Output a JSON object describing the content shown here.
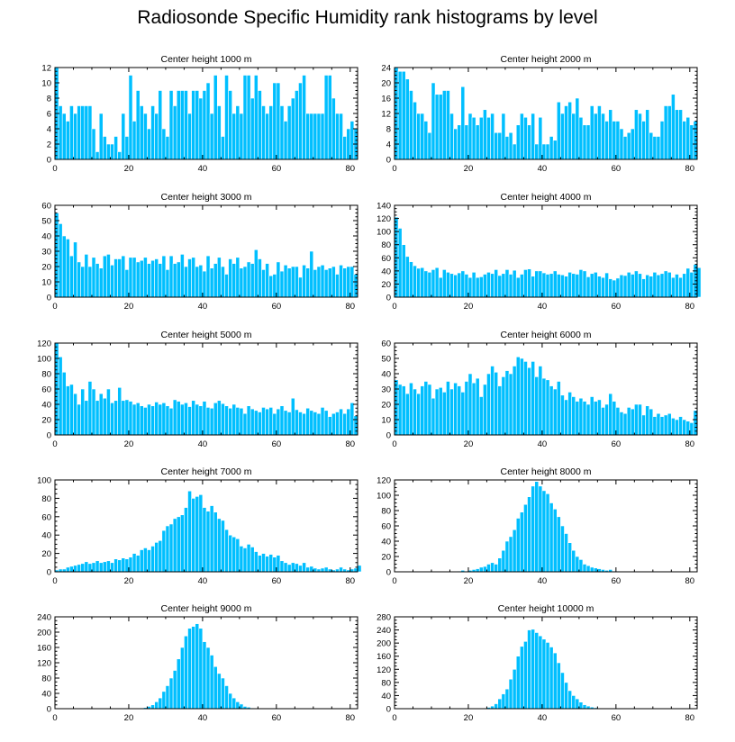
{
  "title": "Radiosonde Specific Humidity rank histograms by level",
  "colors": {
    "bar": "#00bfff",
    "bar_edge": "#ffffff",
    "axis": "#000000"
  },
  "chart_data": [
    {
      "type": "bar",
      "title": "Center height 1000 m",
      "xlim": [
        0,
        82
      ],
      "ylim": [
        0,
        12
      ],
      "xticks": [
        0,
        20,
        40,
        60,
        80
      ],
      "yticks": [
        0,
        2,
        4,
        6,
        8,
        10,
        12
      ],
      "values": [
        12,
        7,
        6,
        5,
        7,
        6,
        7,
        7,
        7,
        7,
        4,
        1,
        6,
        3,
        2,
        2,
        3,
        1,
        6,
        3,
        11,
        5,
        9,
        7,
        6,
        4,
        7,
        6,
        9,
        4,
        3,
        9,
        7,
        9,
        9,
        9,
        6,
        9,
        9,
        8,
        9,
        10,
        6,
        11,
        7,
        3,
        11,
        9,
        6,
        7,
        6,
        11,
        11,
        8,
        11,
        9,
        7,
        6,
        7,
        10,
        10,
        7,
        5,
        7,
        8,
        9,
        10,
        11,
        6,
        6,
        6,
        6,
        6,
        11,
        11,
        8,
        6,
        6,
        3,
        4,
        5,
        4
      ]
    },
    {
      "type": "bar",
      "title": "Center height 2000 m",
      "xlim": [
        0,
        82
      ],
      "ylim": [
        0,
        24
      ],
      "xticks": [
        0,
        20,
        40,
        60,
        80
      ],
      "yticks": [
        0,
        4,
        8,
        12,
        16,
        20,
        24
      ],
      "values": [
        24,
        23,
        23,
        21,
        18,
        15,
        12,
        12,
        10,
        7,
        20,
        17,
        17,
        18,
        18,
        12,
        8,
        9,
        19,
        9,
        12,
        11,
        9,
        11,
        13,
        11,
        12,
        7,
        7,
        12,
        6,
        7,
        4,
        9,
        12,
        11,
        9,
        12,
        4,
        11,
        4,
        4,
        6,
        5,
        15,
        12,
        14,
        15,
        12,
        16,
        11,
        9,
        9,
        14,
        12,
        14,
        12,
        10,
        13,
        10,
        10,
        8,
        6,
        7,
        8,
        13,
        12,
        10,
        13,
        7,
        6,
        6,
        10,
        14,
        14,
        17,
        13,
        13,
        10,
        11,
        9,
        10
      ]
    },
    {
      "type": "bar",
      "title": "Center height 3000 m",
      "xlim": [
        0,
        82
      ],
      "ylim": [
        0,
        60
      ],
      "xticks": [
        0,
        20,
        40,
        60,
        80
      ],
      "yticks": [
        0,
        10,
        20,
        30,
        40,
        50,
        60
      ],
      "values": [
        55,
        48,
        40,
        38,
        27,
        36,
        23,
        20,
        28,
        20,
        26,
        22,
        19,
        27,
        28,
        21,
        25,
        25,
        27,
        18,
        26,
        26,
        23,
        24,
        26,
        22,
        24,
        25,
        22,
        27,
        18,
        27,
        22,
        23,
        28,
        20,
        25,
        26,
        20,
        21,
        17,
        27,
        19,
        22,
        26,
        20,
        15,
        25,
        22,
        26,
        19,
        20,
        23,
        22,
        31,
        25,
        18,
        22,
        14,
        15,
        23,
        17,
        21,
        19,
        20,
        20,
        13,
        21,
        19,
        30,
        18,
        20,
        21,
        18,
        19,
        20,
        15,
        21,
        19,
        20,
        20,
        15
      ]
    },
    {
      "type": "bar",
      "title": "Center height 4000 m",
      "xlim": [
        0,
        82
      ],
      "ylim": [
        0,
        140
      ],
      "xticks": [
        0,
        20,
        40,
        60,
        80
      ],
      "yticks": [
        0,
        20,
        40,
        60,
        80,
        100,
        120,
        140
      ],
      "values": [
        122,
        105,
        80,
        62,
        54,
        48,
        44,
        45,
        40,
        38,
        42,
        45,
        30,
        42,
        38,
        36,
        34,
        37,
        40,
        35,
        30,
        38,
        30,
        31,
        35,
        38,
        36,
        42,
        33,
        36,
        42,
        35,
        41,
        30,
        35,
        42,
        43,
        32,
        40,
        40,
        37,
        35,
        36,
        40,
        35,
        34,
        32,
        38,
        36,
        35,
        42,
        40,
        31,
        36,
        38,
        32,
        30,
        37,
        28,
        26,
        29,
        34,
        33,
        38,
        35,
        40,
        36,
        28,
        34,
        32,
        38,
        34,
        36,
        40,
        38,
        30,
        35,
        30,
        36,
        44,
        38,
        50,
        45
      ]
    },
    {
      "type": "bar",
      "title": "Center height 5000 m",
      "xlim": [
        0,
        82
      ],
      "ylim": [
        0,
        120
      ],
      "xticks": [
        0,
        20,
        40,
        60,
        80
      ],
      "yticks": [
        0,
        20,
        40,
        60,
        80,
        100,
        120
      ],
      "values": [
        120,
        102,
        82,
        64,
        66,
        54,
        40,
        60,
        45,
        70,
        60,
        45,
        54,
        48,
        60,
        42,
        45,
        62,
        45,
        46,
        44,
        40,
        42,
        38,
        36,
        40,
        38,
        43,
        40,
        42,
        38,
        35,
        46,
        44,
        40,
        42,
        37,
        45,
        40,
        38,
        44,
        36,
        35,
        42,
        45,
        41,
        38,
        35,
        40,
        36,
        35,
        28,
        38,
        34,
        32,
        30,
        36,
        34,
        36,
        28,
        34,
        38,
        32,
        30,
        48,
        33,
        30,
        28,
        35,
        32,
        30,
        28,
        36,
        32,
        24,
        28,
        30,
        34,
        28,
        34,
        42,
        25
      ]
    },
    {
      "type": "bar",
      "title": "Center height 6000 m",
      "xlim": [
        0,
        82
      ],
      "ylim": [
        0,
        60
      ],
      "xticks": [
        0,
        20,
        40,
        60,
        80
      ],
      "yticks": [
        0,
        10,
        20,
        30,
        40,
        50,
        60
      ],
      "values": [
        36,
        33,
        32,
        27,
        34,
        30,
        27,
        32,
        35,
        33,
        24,
        30,
        31,
        28,
        35,
        30,
        34,
        32,
        28,
        35,
        40,
        34,
        37,
        25,
        33,
        40,
        45,
        41,
        32,
        38,
        42,
        40,
        45,
        51,
        50,
        48,
        44,
        48,
        38,
        45,
        37,
        36,
        32,
        30,
        35,
        26,
        23,
        28,
        25,
        22,
        24,
        22,
        20,
        25,
        22,
        23,
        18,
        20,
        27,
        22,
        18,
        15,
        14,
        18,
        17,
        20,
        20,
        13,
        19,
        17,
        12,
        14,
        12,
        13,
        14,
        11,
        10,
        12,
        10,
        9,
        8,
        16
      ]
    },
    {
      "type": "bar",
      "title": "Center height 7000 m",
      "xlim": [
        0,
        82
      ],
      "ylim": [
        0,
        100
      ],
      "xticks": [
        0,
        20,
        40,
        60,
        80
      ],
      "yticks": [
        0,
        20,
        40,
        60,
        80,
        100
      ],
      "values": [
        2,
        3,
        3,
        5,
        6,
        7,
        8,
        9,
        11,
        9,
        10,
        12,
        10,
        11,
        12,
        10,
        14,
        13,
        15,
        14,
        16,
        20,
        18,
        24,
        26,
        24,
        28,
        32,
        34,
        45,
        50,
        52,
        58,
        60,
        62,
        70,
        88,
        80,
        82,
        84,
        70,
        66,
        72,
        65,
        58,
        56,
        46,
        40,
        38,
        36,
        28,
        26,
        30,
        27,
        22,
        18,
        20,
        17,
        19,
        16,
        18,
        12,
        10,
        8,
        10,
        9,
        7,
        10,
        5,
        6,
        4,
        3,
        4,
        5,
        3,
        2,
        3,
        5,
        3,
        2,
        3,
        4,
        7
      ]
    },
    {
      "type": "bar",
      "title": "Center height 8000 m",
      "xlim": [
        0,
        82
      ],
      "ylim": [
        0,
        120
      ],
      "xticks": [
        0,
        20,
        40,
        60,
        80
      ],
      "yticks": [
        0,
        20,
        40,
        60,
        80,
        100,
        120
      ],
      "values": [
        0,
        0,
        0,
        0,
        0,
        0,
        0,
        0,
        0,
        0,
        0,
        0,
        0,
        0,
        0,
        0,
        0,
        1,
        2,
        1,
        2,
        3,
        4,
        6,
        7,
        10,
        12,
        10,
        18,
        28,
        40,
        46,
        55,
        70,
        78,
        88,
        98,
        112,
        118,
        112,
        106,
        102,
        90,
        82,
        72,
        60,
        50,
        38,
        28,
        20,
        16,
        10,
        8,
        6,
        5,
        4,
        3,
        2,
        3,
        1,
        1,
        0,
        0,
        0,
        0,
        0,
        0,
        0,
        0,
        0,
        0,
        0,
        0,
        0,
        0,
        0,
        0,
        0,
        0,
        0,
        0,
        0
      ]
    },
    {
      "type": "bar",
      "title": "Center height 9000 m",
      "xlim": [
        0,
        82
      ],
      "ylim": [
        0,
        240
      ],
      "xticks": [
        0,
        20,
        40,
        60,
        80
      ],
      "yticks": [
        0,
        40,
        80,
        120,
        160,
        200,
        240
      ],
      "values": [
        0,
        0,
        0,
        0,
        0,
        0,
        0,
        0,
        0,
        0,
        0,
        0,
        0,
        0,
        0,
        0,
        0,
        0,
        0,
        0,
        0,
        1,
        1,
        2,
        3,
        6,
        10,
        18,
        28,
        45,
        60,
        80,
        100,
        130,
        160,
        190,
        210,
        215,
        222,
        210,
        175,
        160,
        140,
        110,
        92,
        80,
        60,
        40,
        28,
        18,
        12,
        6,
        4,
        2,
        1,
        0,
        0,
        0,
        0,
        0,
        0,
        0,
        0,
        0,
        0,
        0,
        0,
        0,
        0,
        0,
        0,
        0,
        0,
        0,
        0,
        0,
        0,
        0,
        0,
        0,
        0,
        0
      ]
    },
    {
      "type": "bar",
      "title": "Center height 10000 m",
      "xlim": [
        0,
        82
      ],
      "ylim": [
        0,
        280
      ],
      "xticks": [
        0,
        20,
        40,
        60,
        80
      ],
      "yticks": [
        0,
        40,
        80,
        120,
        160,
        200,
        240,
        280
      ],
      "values": [
        0,
        0,
        0,
        0,
        0,
        0,
        0,
        0,
        0,
        0,
        0,
        0,
        0,
        0,
        0,
        0,
        0,
        0,
        0,
        0,
        0,
        0,
        0,
        1,
        2,
        4,
        8,
        15,
        30,
        45,
        60,
        90,
        120,
        160,
        190,
        205,
        240,
        242,
        232,
        222,
        212,
        202,
        188,
        170,
        140,
        110,
        80,
        55,
        40,
        30,
        20,
        12,
        8,
        5,
        3,
        2,
        1,
        1,
        0,
        0,
        0,
        0,
        0,
        0,
        0,
        0,
        0,
        0,
        0,
        0,
        0,
        0,
        0,
        0,
        0,
        0,
        0,
        0,
        0,
        0,
        0,
        0
      ]
    }
  ]
}
